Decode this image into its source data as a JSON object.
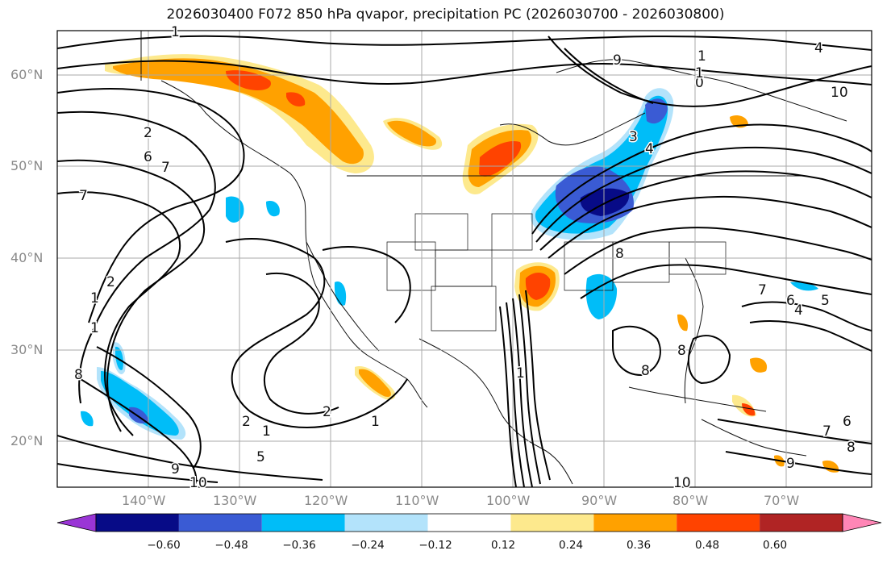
{
  "title": "2026030400 F072 850 hPa qvapor, precipitation PC (2026030700 - 2026030800)",
  "lat_labels": [
    "60°N",
    "50°N",
    "40°N",
    "30°N",
    "20°N"
  ],
  "lon_labels": [
    "140°W",
    "130°W",
    "120°W",
    "110°W",
    "100°W",
    "90°W",
    "80°W",
    "70°W"
  ],
  "contour_labels": [
    "1",
    "2",
    "6",
    "7",
    "7",
    "2",
    "1",
    "1",
    "8",
    "9",
    "10",
    "1",
    "2",
    "1",
    "5",
    "8",
    "8",
    "8",
    "7",
    "6",
    "4",
    "5",
    "6",
    "7",
    "8",
    "9",
    "10",
    "4",
    "1",
    "0",
    "1",
    "10",
    "9",
    "1",
    "2",
    "3",
    "4"
  ],
  "colorbar": {
    "ticks": [
      "−0.60",
      "−0.48",
      "−0.36",
      "−0.24",
      "−0.12",
      "0.12",
      "0.24",
      "0.36",
      "0.48",
      "0.60"
    ],
    "colors": [
      "#9a35d6",
      "#070b87",
      "#3a5bd4",
      "#00bdf8",
      "#b3e3fb",
      "#ffffff",
      "#fde98d",
      "#ffa100",
      "#ff4300",
      "#b02424",
      "#ff86b6"
    ]
  }
}
